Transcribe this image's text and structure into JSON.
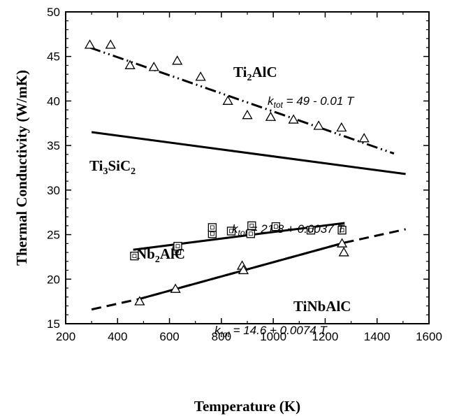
{
  "chart_data": {
    "type": "scatter",
    "xlabel": "Temperature (K)",
    "ylabel": "Thermal Conductivity (W/mK)",
    "xlim": [
      200,
      1600
    ],
    "ylim": [
      15,
      50
    ],
    "xticks": [
      200,
      400,
      600,
      800,
      1000,
      1200,
      1400,
      1600
    ],
    "yticks": [
      15,
      20,
      25,
      30,
      35,
      40,
      45,
      50
    ],
    "grid": false,
    "series": [
      {
        "name": "Ti2AlC",
        "marker": "triangle",
        "points": [
          [
            293,
            46.3
          ],
          [
            373,
            46.3
          ],
          [
            448,
            44.0
          ],
          [
            540,
            43.8
          ],
          [
            630,
            44.5
          ],
          [
            720,
            42.7
          ],
          [
            825,
            40.0
          ],
          [
            900,
            38.4
          ],
          [
            990,
            38.2
          ],
          [
            1078,
            37.9
          ],
          [
            1175,
            37.2
          ],
          [
            1263,
            37.0
          ],
          [
            1350,
            35.8
          ]
        ],
        "fit": {
          "equation": "k_tot = 49 - 0.01 T",
          "style": "dash-dot",
          "x": [
            293,
            1465
          ],
          "y": [
            46.0,
            34.1
          ]
        }
      },
      {
        "name": "Ti3SiC2",
        "marker": "none",
        "points": [],
        "fit": {
          "equation": "",
          "style": "solid",
          "x": [
            300,
            1510
          ],
          "y": [
            36.5,
            31.8
          ]
        }
      },
      {
        "name": "Nb2AlC",
        "marker": "square",
        "points": [
          [
            465,
            22.6
          ],
          [
            628,
            23.2
          ],
          [
            632,
            23.7
          ],
          [
            765,
            25.1
          ],
          [
            765,
            25.8
          ],
          [
            838,
            25.4
          ],
          [
            913,
            25.1
          ],
          [
            917,
            26.0
          ],
          [
            1010,
            25.9
          ],
          [
            1145,
            25.5
          ],
          [
            1265,
            25.5
          ]
        ],
        "fit": {
          "equation": "k_tot = 21.8 + 0.0037 T",
          "style": "solid",
          "x": [
            460,
            1275
          ],
          "y": [
            23.3,
            26.3
          ]
        }
      },
      {
        "name": "TiNbAlC",
        "marker": "triangle",
        "points": [
          [
            485,
            17.5
          ],
          [
            623,
            18.9
          ],
          [
            880,
            21.5
          ],
          [
            885,
            21.0
          ],
          [
            1265,
            24.0
          ],
          [
            1272,
            23.0
          ]
        ],
        "fit": {
          "equation": "k_tot = 14.6 + 0.0074 T",
          "style": "solid",
          "x": [
            487,
            1275
          ],
          "y": [
            17.8,
            24.1
          ]
        },
        "extrapolation": {
          "style": "dashed",
          "x": [
            300,
            487,
            1275,
            1510
          ],
          "y": [
            16.6,
            17.8,
            24.1,
            25.6
          ]
        }
      }
    ],
    "annotations": [
      {
        "series": "Ti2AlC",
        "label": "Ti2AlC",
        "equation": "49 - 0.01 T"
      },
      {
        "series": "Ti3SiC2",
        "label": "Ti3SiC2"
      },
      {
        "series": "Nb2AlC",
        "label": "Nb2AlC",
        "equation": "21.8 + 0.0037 T"
      },
      {
        "series": "TiNbAlC",
        "label": "TiNbAlC",
        "equation": "14.6 + 0.0074 T"
      }
    ]
  },
  "labels": {
    "ti2alc": {
      "main": "Ti",
      "sub": "2",
      "rest": "AlC"
    },
    "ti3sic2": {
      "main": "Ti",
      "sub1": "3",
      "mid": "SiC",
      "sub2": "2"
    },
    "nb2alc": {
      "main": "Nb",
      "sub": "2",
      "rest": "AlC"
    },
    "tinbalc": "TiNbAlC",
    "eq_k": "k",
    "eq_sub": "tot",
    "eq_ti2alc": " = 49 - 0.01 T",
    "eq_nb2alc": " = 21.8 + 0.0037 T",
    "eq_tinbalc": " = 14.6 + 0.0074 T"
  }
}
